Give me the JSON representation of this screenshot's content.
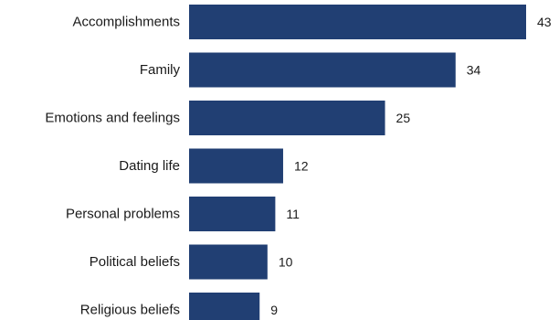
{
  "chart_data": {
    "type": "bar",
    "orientation": "horizontal",
    "title": "",
    "xlabel": "",
    "ylabel": "",
    "categories": [
      "Accomplishments",
      "Family",
      "Emotions and feelings",
      "Dating life",
      "Personal problems",
      "Political beliefs",
      "Religious beliefs"
    ],
    "values": [
      43,
      34,
      25,
      12,
      11,
      10,
      9
    ],
    "xlim": [
      0,
      43
    ],
    "grid": false,
    "legend": "none",
    "bar_color": "#213f73"
  }
}
